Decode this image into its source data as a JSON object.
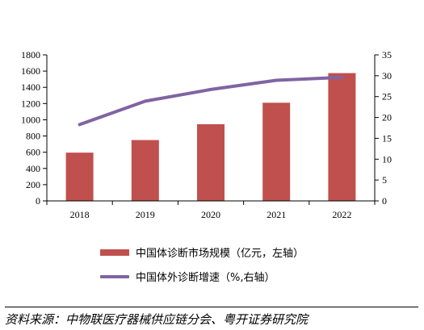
{
  "chart_data": {
    "type": "bar",
    "categories": [
      "2018",
      "2019",
      "2020",
      "2021",
      "2022"
    ],
    "series": [
      {
        "name": "中国体诊断市场规模（亿元，左轴）",
        "type": "bar",
        "axis": "left",
        "values": [
          595,
          750,
          945,
          1210,
          1575
        ]
      },
      {
        "name": "中国体外诊断增速（%,右轴）",
        "type": "line",
        "axis": "right",
        "values": [
          18.3,
          23.9,
          26.7,
          28.9,
          29.6
        ]
      }
    ],
    "y_left": {
      "min": 0,
      "max": 1800,
      "step": 200
    },
    "y_right": {
      "min": 0,
      "max": 35,
      "step": 5
    },
    "legend_position": "bottom",
    "grid": false,
    "colors": {
      "bar": "#C0504D",
      "line": "#8064A2"
    }
  },
  "source": "资料来源：中物联医疗器械供应链分会、粤开证券研究院"
}
